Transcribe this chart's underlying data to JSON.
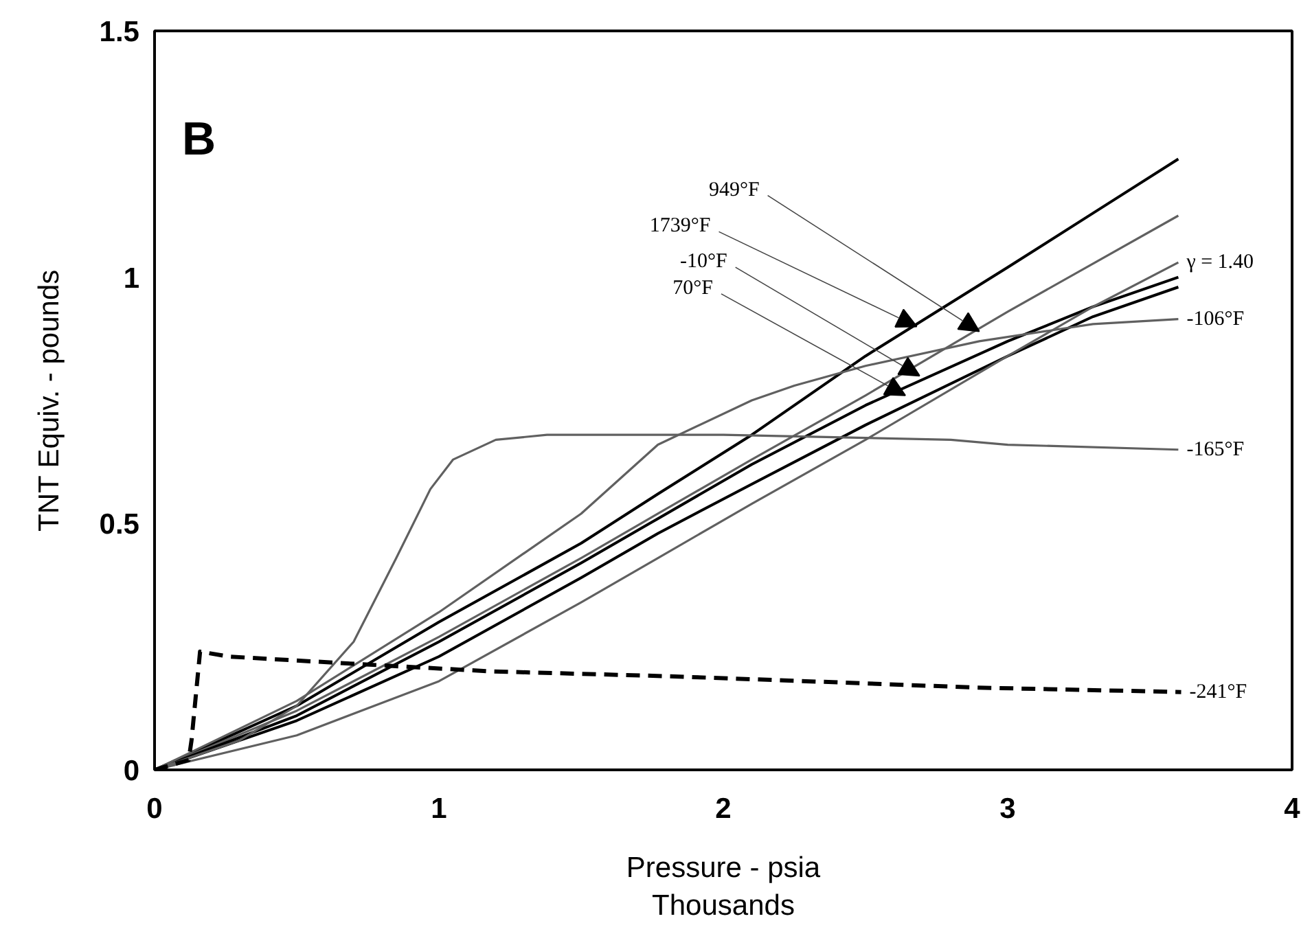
{
  "chart_data": {
    "type": "line",
    "xlabel": "Pressure - psia\nThousands",
    "ylabel": "TNT Equiv. - pounds",
    "xlim": [
      0,
      4
    ],
    "ylim": [
      0,
      1.5
    ],
    "xticks": [
      0,
      1,
      2,
      3,
      4
    ],
    "yticks": [
      0,
      0.5,
      1,
      1.5
    ],
    "grid": false,
    "marker": "none",
    "annotations": [
      "B",
      {
        "text": "949°F",
        "x": 2.9,
        "y": 0.89
      },
      {
        "text": "1739°F",
        "x": 2.68,
        "y": 0.9
      },
      {
        "text": "-10°F",
        "x": 2.69,
        "y": 0.8
      },
      {
        "text": "70°F",
        "x": 2.64,
        "y": 0.76
      }
    ],
    "series": [
      {
        "color": "#000000",
        "line_style": "solid",
        "x": [
          0,
          0.5,
          1,
          1.5,
          1.77,
          2.1,
          2.5,
          3.0,
          3.3,
          3.6
        ],
        "values": [
          0,
          0.13,
          0.3,
          0.46,
          0.56,
          0.68,
          0.84,
          1.02,
          1.13,
          1.24
        ]
      },
      {
        "color": "#606060",
        "line_style": "solid",
        "x": [
          0,
          0.5,
          1,
          1.5,
          1.77,
          2.1,
          2.5,
          3.0,
          3.6
        ],
        "values": [
          0,
          0.12,
          0.27,
          0.43,
          0.52,
          0.63,
          0.76,
          0.93,
          1.125
        ]
      },
      {
        "color": "#000000",
        "line_style": "solid",
        "x": [
          0,
          0.5,
          1,
          1.5,
          1.77,
          2.1,
          2.5,
          3.0,
          3.3,
          3.6
        ],
        "values": [
          0,
          0.11,
          0.26,
          0.42,
          0.51,
          0.62,
          0.74,
          0.87,
          0.94,
          1.0
        ]
      },
      {
        "color": "#000000",
        "line_style": "solid",
        "x": [
          0,
          0.5,
          1,
          1.5,
          1.77,
          2.1,
          2.5,
          3.0,
          3.3,
          3.6
        ],
        "values": [
          0,
          0.1,
          0.23,
          0.39,
          0.48,
          0.58,
          0.7,
          0.84,
          0.92,
          0.98
        ]
      },
      {
        "name": "γ = 1.40",
        "color": "#606060",
        "line_style": "solid",
        "x": [
          0,
          0.5,
          1,
          1.5,
          1.77,
          2.1,
          2.5,
          3.0,
          3.3,
          3.6
        ],
        "values": [
          0,
          0.07,
          0.18,
          0.34,
          0.43,
          0.54,
          0.67,
          0.84,
          0.94,
          1.03
        ]
      },
      {
        "name": "-106°F",
        "color": "#606060",
        "line_style": "solid",
        "x": [
          0,
          0.5,
          1,
          1.5,
          1.77,
          2.1,
          2.25,
          2.5,
          2.9,
          3.3,
          3.6
        ],
        "values": [
          0,
          0.14,
          0.32,
          0.52,
          0.66,
          0.75,
          0.78,
          0.82,
          0.87,
          0.905,
          0.915
        ]
      },
      {
        "name": "-165°F",
        "color": "#606060",
        "line_style": "solid",
        "x": [
          0,
          0.3,
          0.5,
          0.7,
          0.85,
          0.97,
          1.05,
          1.2,
          1.38,
          2.0,
          2.8,
          3.0,
          3.6
        ],
        "values": [
          0,
          0.06,
          0.13,
          0.26,
          0.43,
          0.57,
          0.63,
          0.67,
          0.68,
          0.68,
          0.67,
          0.66,
          0.65
        ]
      },
      {
        "name": "-241°F",
        "color": "#000000",
        "line_style": "dashed",
        "x": [
          0,
          0.12,
          0.13,
          0.16,
          0.26,
          0.71,
          1.18,
          1.81,
          2.29,
          2.89,
          3.61
        ],
        "values": [
          0,
          0.02,
          0.06,
          0.24,
          0.23,
          0.215,
          0.2,
          0.19,
          0.18,
          0.167,
          0.158
        ]
      }
    ]
  }
}
